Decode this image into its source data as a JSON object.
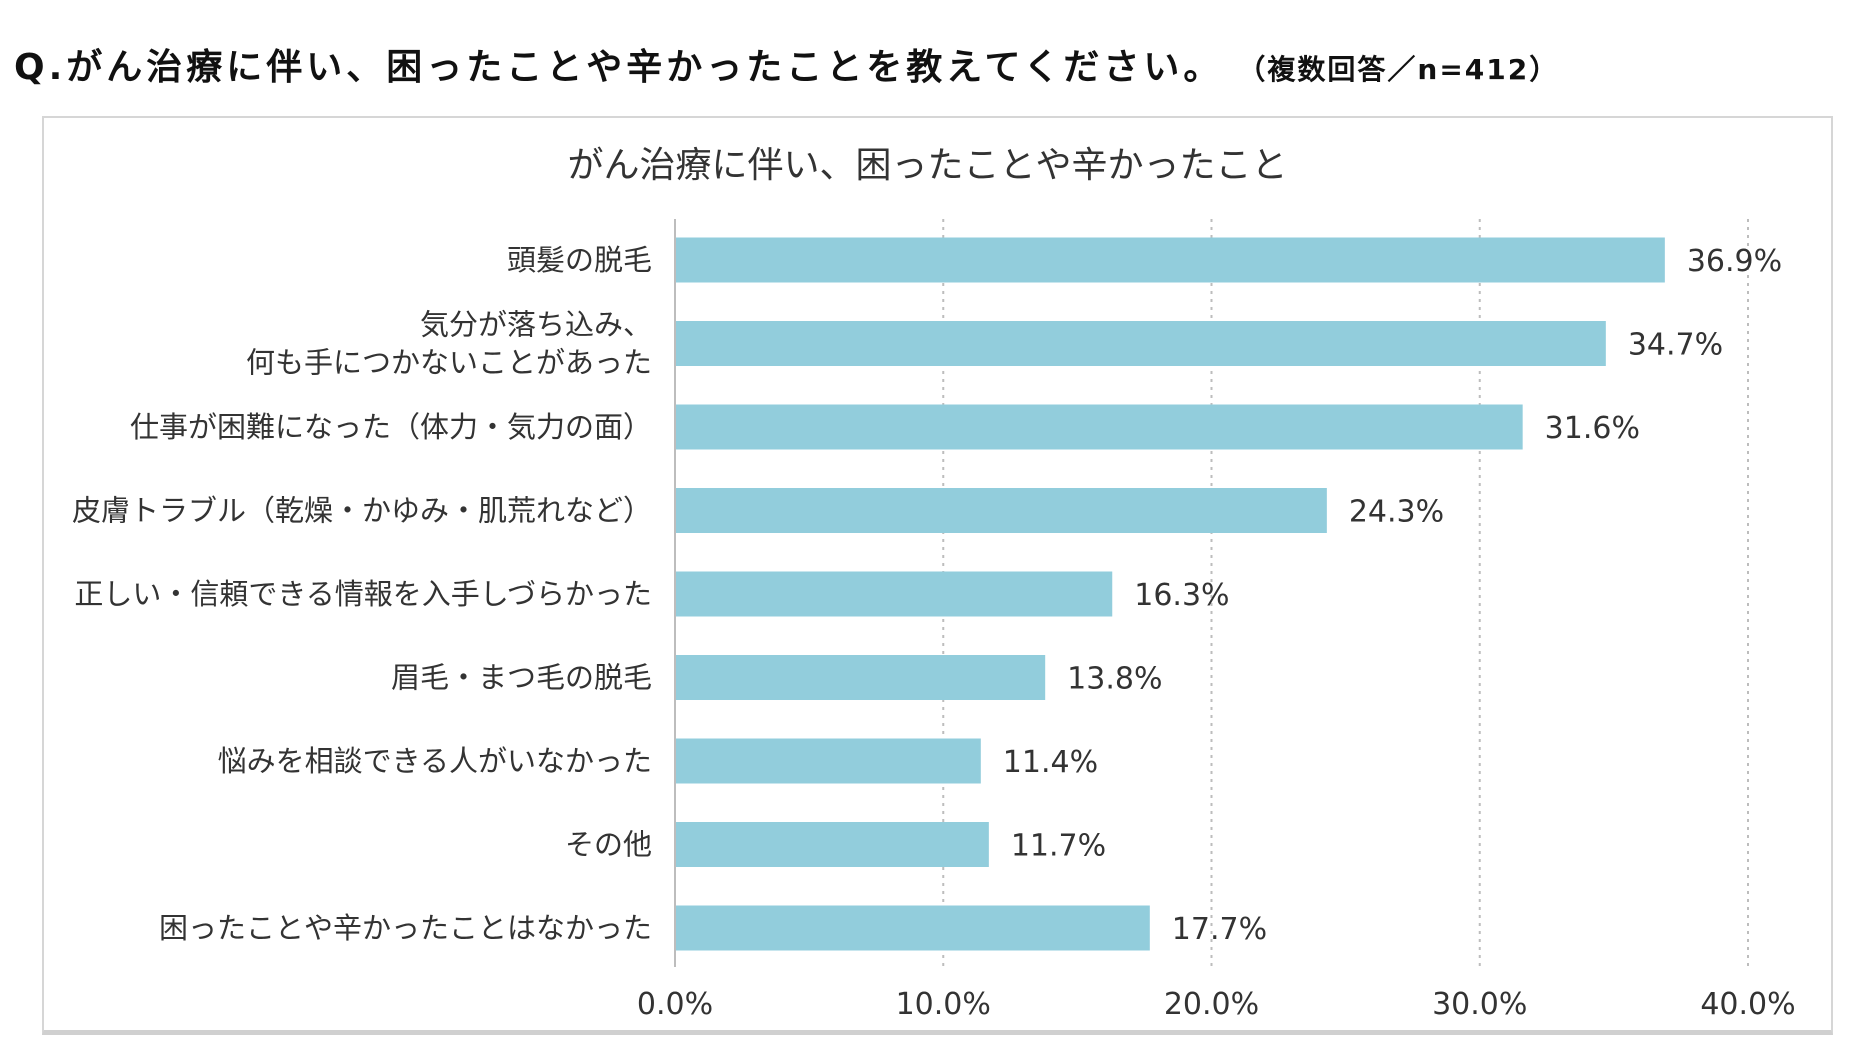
{
  "question": {
    "text": "Q.がん治療に伴い、困ったことや辛かったことを教えてください。",
    "note": "（複数回答／n=412）"
  },
  "chart_data": {
    "type": "bar",
    "orientation": "horizontal",
    "title": "がん治療に伴い、困ったことや辛かったこと",
    "categories": [
      [
        "頭髪の脱毛"
      ],
      [
        "気分が落ち込み、",
        "何も手につかないことがあった"
      ],
      [
        "仕事が困難になった（体力・気力の面）"
      ],
      [
        "皮膚トラブル（乾燥・かゆみ・肌荒れなど）"
      ],
      [
        "正しい・信頼できる情報を入手しづらかった"
      ],
      [
        "眉毛・まつ毛の脱毛"
      ],
      [
        "悩みを相談できる人がいなかった"
      ],
      [
        "その他"
      ],
      [
        "困ったことや辛かったことはなかった"
      ]
    ],
    "values": [
      36.9,
      34.7,
      31.6,
      24.3,
      16.3,
      13.8,
      11.4,
      11.7,
      17.7
    ],
    "value_labels": [
      "36.9%",
      "34.7%",
      "31.6%",
      "24.3%",
      "16.3%",
      "13.8%",
      "11.4%",
      "11.7%",
      "17.7%"
    ],
    "xlim": [
      0,
      40
    ],
    "ticks": [
      0,
      10,
      20,
      30,
      40
    ],
    "tick_labels": [
      "0.0%",
      "10.0%",
      "20.0%",
      "30.0%",
      "40.0%"
    ],
    "grid": true,
    "legend": "none",
    "bar_color": "#92CDDC"
  }
}
